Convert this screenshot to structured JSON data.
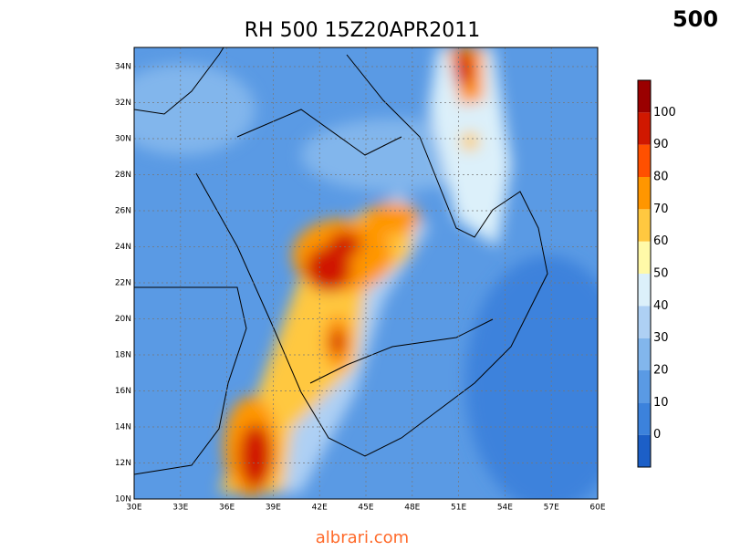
{
  "header": {
    "title": "RH 500 15Z20APR2011",
    "level": "500"
  },
  "map": {
    "lat_labels": [
      "10N",
      "12N",
      "14N",
      "16N",
      "18N",
      "20N",
      "22N",
      "24N",
      "26N",
      "28N",
      "30N",
      "32N",
      "34N"
    ],
    "lon_labels": [
      "30E",
      "33E",
      "36E",
      "39E",
      "42E",
      "45E",
      "48E",
      "51E",
      "54E",
      "57E",
      "60E"
    ]
  },
  "colorbar": {
    "labels": [
      "0",
      "10",
      "20",
      "30",
      "40",
      "50",
      "60",
      "70",
      "80",
      "90",
      "100"
    ],
    "colors": [
      "#1c5fc7",
      "#3c82dc",
      "#5a9ae4",
      "#82b6ec",
      "#aed0f4",
      "#dcf0fa",
      "#fff9a8",
      "#ffc840",
      "#ff9600",
      "#ff5000",
      "#d01800",
      "#9a0000"
    ]
  },
  "footer": "albrari.com"
}
